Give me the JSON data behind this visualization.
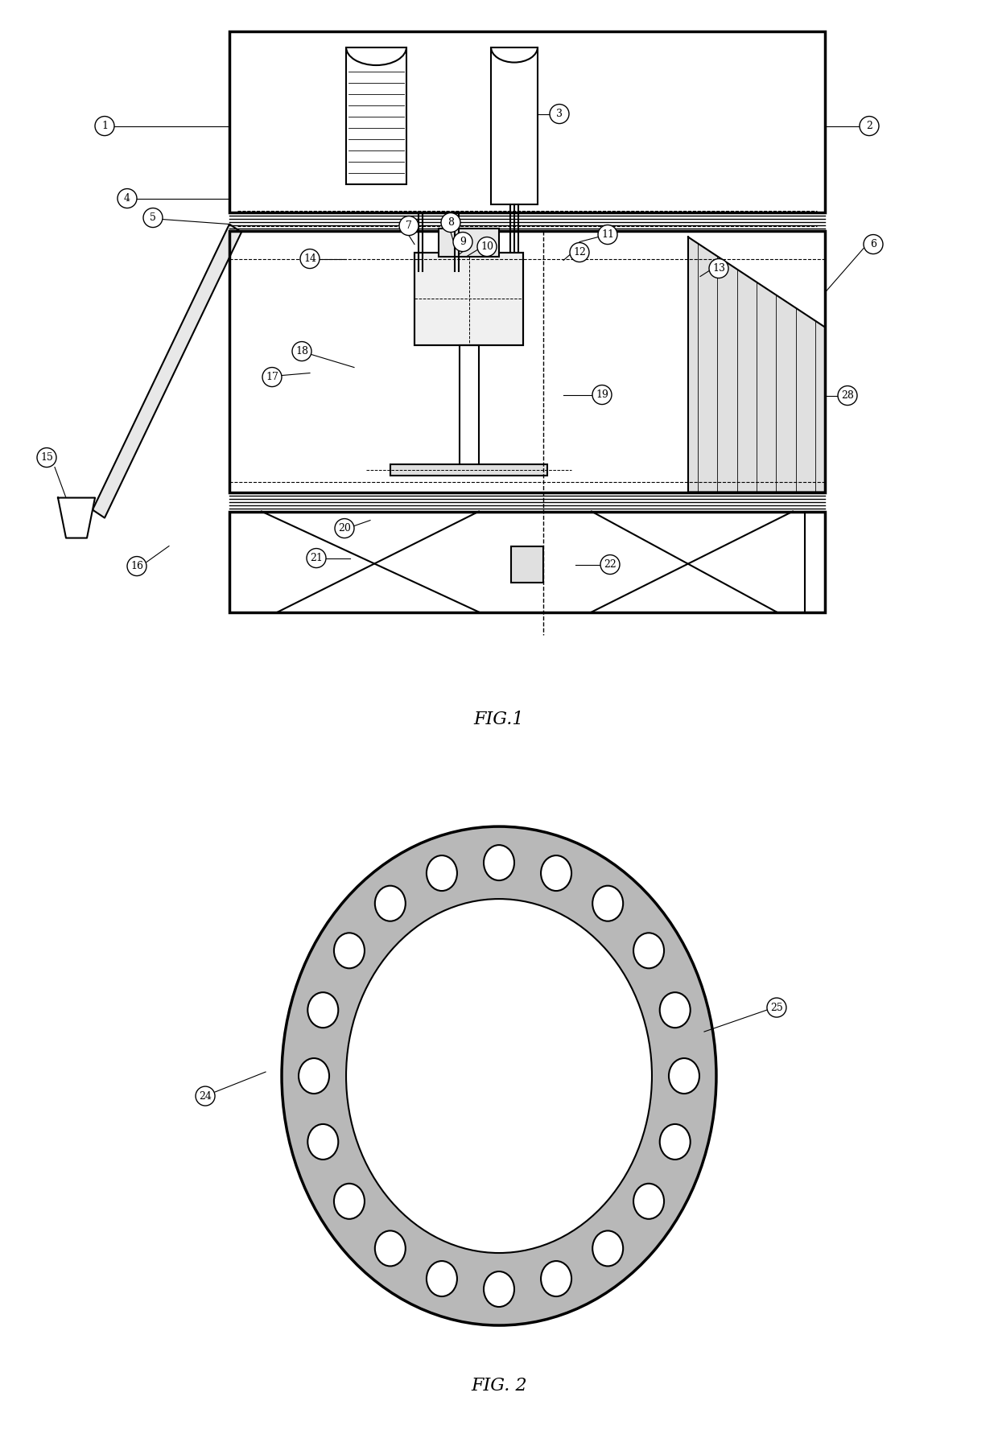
{
  "fig_width": 12.4,
  "fig_height": 17.87,
  "bg_color": "#ffffff",
  "line_color": "#000000",
  "fig1_title": "FIG.1",
  "fig2_title": "FIG. 2",
  "title_fontsize": 16
}
